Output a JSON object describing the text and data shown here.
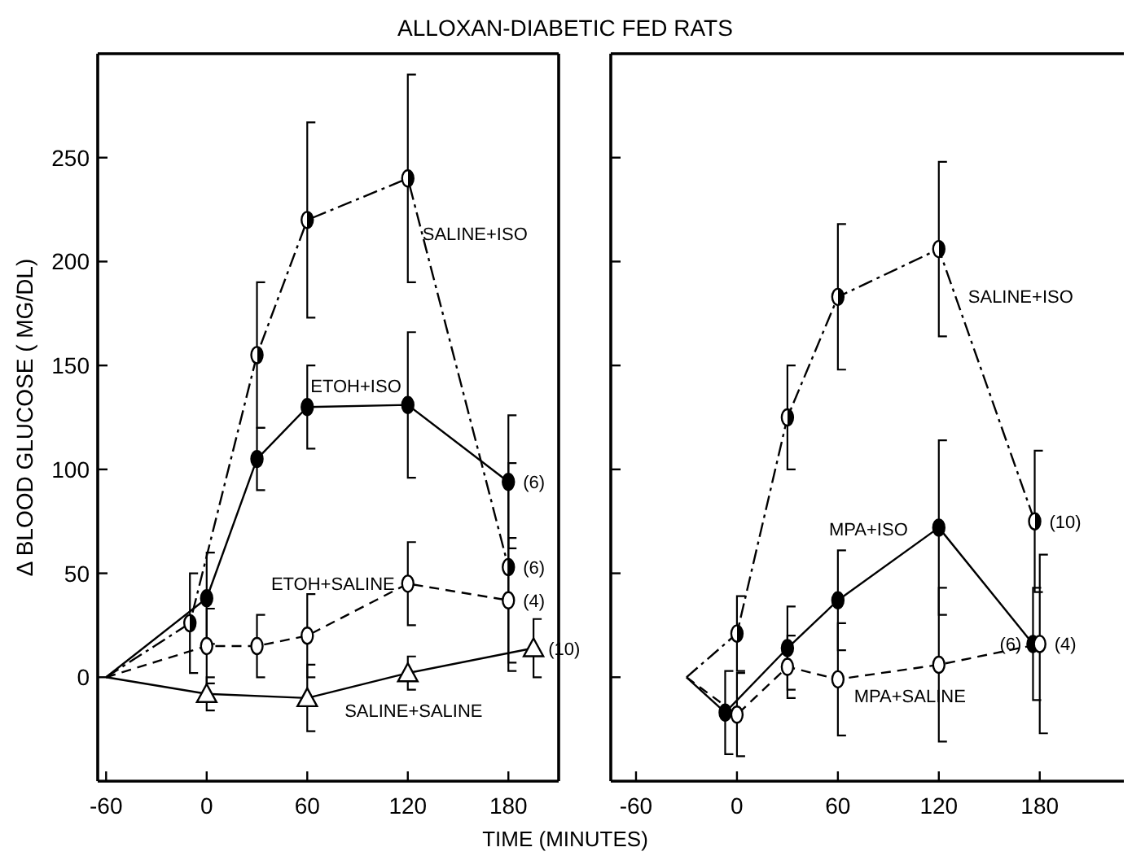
{
  "chart_data": [
    {
      "type": "line",
      "title": "ALLOXAN-DIABETIC FED RATS",
      "xlabel": "TIME (MINUTES)",
      "ylabel": "Δ BLOOD GLUCOSE ( MG/DL)",
      "xlim": [
        -65,
        210
      ],
      "ylim": [
        -50,
        300
      ],
      "xticks": [
        -60,
        0,
        60,
        120,
        180
      ],
      "yticks": [
        0,
        50,
        100,
        150,
        200,
        250
      ],
      "grid": false,
      "series": [
        {
          "name": "SALINE+ISO",
          "color": "#000000",
          "marker": "circle",
          "line_style": "dotted",
          "x": [
            -60,
            -10,
            30,
            60,
            120,
            180
          ],
          "values": [
            0,
            26,
            155,
            220,
            240,
            53
          ],
          "errors": [
            null,
            24,
            35,
            47,
            50,
            50
          ]
        },
        {
          "name": "ETOH+ISO",
          "color": "#000000",
          "marker": "circle",
          "line_style": "solid",
          "x": [
            -60,
            0,
            30,
            60,
            120,
            180
          ],
          "values": [
            0,
            38,
            105,
            130,
            131,
            94
          ],
          "errors": [
            null,
            22,
            15,
            20,
            35,
            32
          ]
        },
        {
          "name": "ETOH+SALINE",
          "color": "#000000",
          "marker": "circle",
          "line_style": "dashed",
          "x": [
            -60,
            0,
            30,
            60,
            120,
            180
          ],
          "values": [
            0,
            15,
            15,
            20,
            45,
            37
          ],
          "errors": [
            null,
            18,
            15,
            20,
            20,
            30
          ]
        },
        {
          "name": "SALINE+SALINE",
          "color": "#000000",
          "marker": "triangle",
          "line_style": "solid",
          "x": [
            -60,
            0,
            60,
            120,
            195
          ],
          "values": [
            0,
            -8,
            -10,
            2,
            14
          ],
          "errors": [
            null,
            8,
            16,
            8,
            14
          ]
        }
      ],
      "annotations": [
        {
          "text": "(6)",
          "x": 180,
          "y": 94
        },
        {
          "text": "(6)",
          "x": 180,
          "y": 53
        },
        {
          "text": "(4)",
          "x": 180,
          "y": 37
        },
        {
          "text": "(10)",
          "x": 195,
          "y": 14
        }
      ]
    },
    {
      "type": "line",
      "xlim": [
        -75,
        230
      ],
      "ylim": [
        -50,
        300
      ],
      "xticks": [
        -60,
        0,
        60,
        120,
        180
      ],
      "yticks": [
        0,
        50,
        100,
        150,
        200,
        250
      ],
      "tick_labels": "x",
      "grid": false,
      "series": [
        {
          "name": "SALINE+ISO",
          "color": "#000000",
          "marker": "circle",
          "line_style": "dotted",
          "x": [
            -30,
            0,
            30,
            60,
            120,
            177
          ],
          "values": [
            0,
            21,
            125,
            183,
            206,
            75
          ],
          "errors": [
            null,
            18,
            25,
            35,
            42,
            34
          ]
        },
        {
          "name": "MPA+ISO",
          "color": "#000000",
          "marker": "circle",
          "line_style": "solid",
          "x": [
            -30,
            -7,
            30,
            60,
            120,
            176
          ],
          "values": [
            0,
            -17,
            14,
            37,
            72,
            16
          ],
          "errors": [
            null,
            20,
            20,
            24,
            42,
            27
          ]
        },
        {
          "name": "MPA+SALINE",
          "color": "#000000",
          "marker": "circle",
          "line_style": "dashed",
          "x": [
            -30,
            0,
            30,
            60,
            120,
            180
          ],
          "values": [
            0,
            -18,
            5,
            -1,
            6,
            16
          ],
          "errors": [
            null,
            20,
            15,
            27,
            37,
            43
          ]
        }
      ],
      "annotations": [
        {
          "text": "(10)",
          "x": 177,
          "y": 75
        },
        {
          "text": "(6)",
          "x": 176,
          "y": 16
        },
        {
          "text": "(4)",
          "x": 180,
          "y": 16
        }
      ]
    }
  ]
}
